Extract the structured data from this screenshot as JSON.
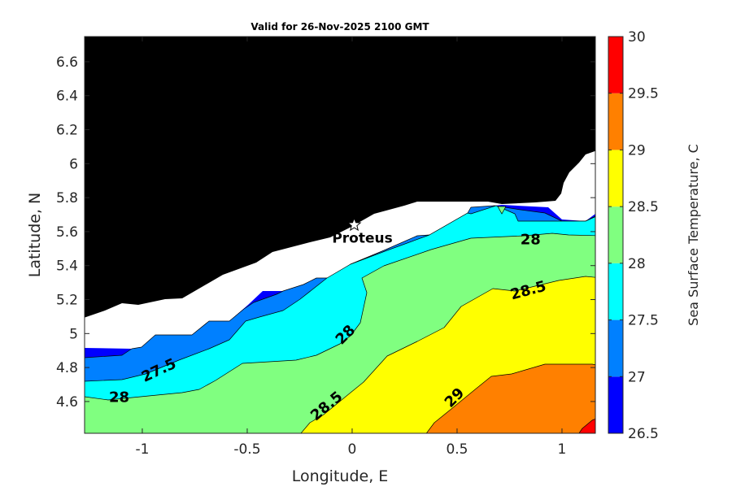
{
  "chart_data": {
    "type": "contourf",
    "title": "Valid for 26-Nov-2025 2100 GMT",
    "xlabel": "Longitude, E",
    "ylabel": "Latitude, N",
    "xlim": [
      -1.275,
      1.159
    ],
    "ylim": [
      4.413,
      6.748
    ],
    "xticks": [
      -1,
      -0.5,
      0,
      0.5,
      1
    ],
    "xtick_labels": [
      "-1",
      "-0.5",
      "0",
      "0.5",
      "1"
    ],
    "yticks": [
      4.6,
      4.8,
      5,
      5.2,
      5.4,
      5.6,
      5.8,
      6,
      6.2,
      6.4,
      6.6
    ],
    "ytick_labels": [
      "4.6",
      "4.8",
      "5",
      "5.2",
      "5.4",
      "5.6",
      "5.8",
      "6",
      "6.2",
      "6.4",
      "6.6"
    ],
    "levels": [
      26.5,
      27,
      27.5,
      28,
      28.5,
      29,
      29.5,
      30
    ],
    "band_colors": [
      "#0000ff",
      "#0080ff",
      "#00ffff",
      "#80ff80",
      "#ffff00",
      "#ff8000",
      "#ff0000"
    ],
    "land_color": "#000000",
    "colorbar": {
      "label": "Sea Surface Temperature, C",
      "tick_labels": [
        "26.5",
        "27",
        "27.5",
        "28",
        "28.5",
        "29",
        "29.5",
        "30"
      ]
    },
    "contour_labels": [
      {
        "text": "27.5",
        "lon": -0.92,
        "lat": 4.78
      },
      {
        "text": "28",
        "lon": -1.11,
        "lat": 4.62
      },
      {
        "text": "28",
        "lon": -0.03,
        "lat": 4.99
      },
      {
        "text": "28.5",
        "lon": -0.12,
        "lat": 4.57
      },
      {
        "text": "29",
        "lon": 0.49,
        "lat": 4.62
      },
      {
        "text": "28.5",
        "lon": 0.84,
        "lat": 5.25
      },
      {
        "text": "28",
        "lon": 0.85,
        "lat": 5.55
      }
    ],
    "station": {
      "name": "Proteus",
      "lon": 0.01,
      "lat": 5.64
    }
  }
}
